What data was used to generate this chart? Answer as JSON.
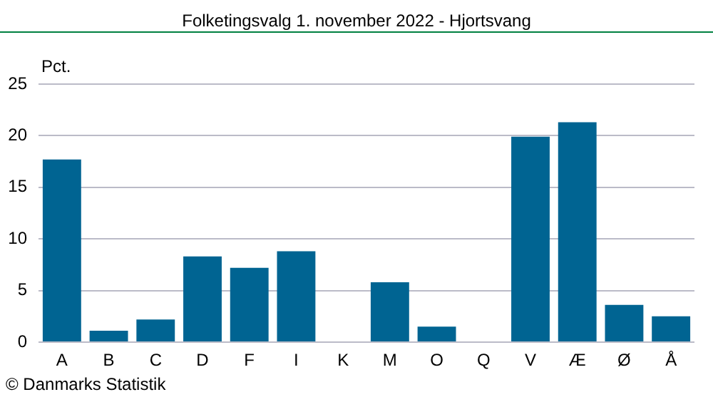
{
  "chart_data": {
    "type": "bar",
    "title": "Folketingsvalg 1. november 2022 - Hjortsvang",
    "ylabel": "Pct.",
    "categories": [
      "A",
      "B",
      "C",
      "D",
      "F",
      "I",
      "K",
      "M",
      "O",
      "Q",
      "V",
      "Æ",
      "Ø",
      "Å"
    ],
    "values": [
      17.7,
      1.1,
      2.2,
      8.3,
      7.2,
      8.8,
      0,
      5.8,
      1.5,
      0,
      19.9,
      21.3,
      3.6,
      2.5
    ],
    "color": "#006492",
    "ylim": [
      0,
      25
    ],
    "yticks": [
      0,
      5,
      10,
      15,
      20,
      25
    ],
    "grid": "y",
    "legend": false,
    "annotations": [
      "© Danmarks Statistik"
    ]
  }
}
